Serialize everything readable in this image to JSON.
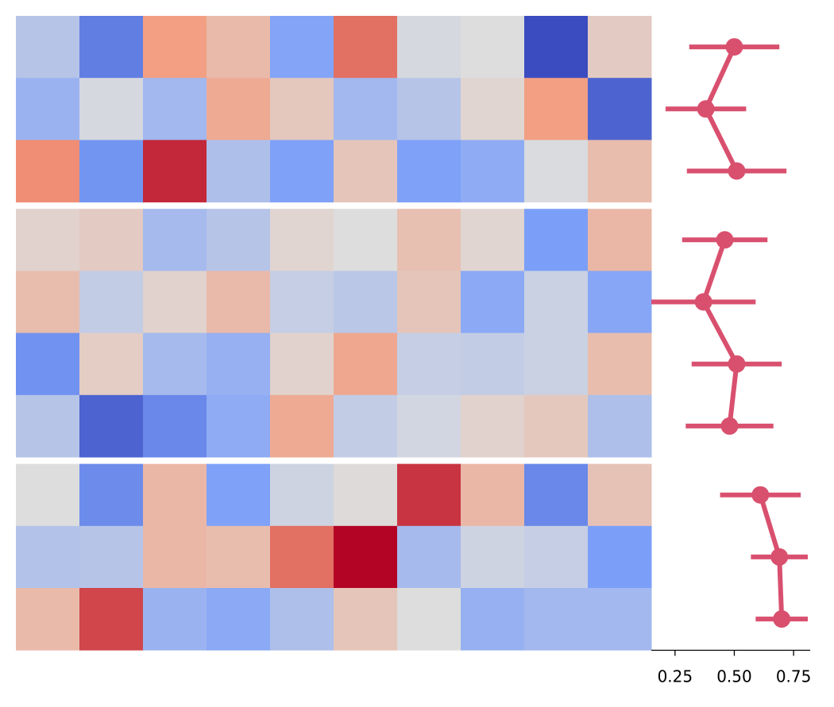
{
  "chart_data": [
    {
      "type": "heatmap",
      "colormap": "coolwarm",
      "clim": [
        0,
        1
      ],
      "blocks": [
        {
          "values": [
            [
              0.4,
              0.15,
              0.73,
              0.63,
              0.27,
              0.82,
              0.48,
              0.5,
              0.0,
              0.57
            ],
            [
              0.33,
              0.48,
              0.35,
              0.69,
              0.58,
              0.35,
              0.4,
              0.53,
              0.73,
              0.07
            ],
            [
              0.77,
              0.22,
              0.94,
              0.38,
              0.26,
              0.59,
              0.26,
              0.3,
              0.49,
              0.62
            ]
          ]
        },
        {
          "values": [
            [
              0.54,
              0.57,
              0.36,
              0.4,
              0.53,
              0.5,
              0.61,
              0.53,
              0.25,
              0.64
            ],
            [
              0.62,
              0.43,
              0.54,
              0.63,
              0.44,
              0.41,
              0.59,
              0.29,
              0.45,
              0.28
            ],
            [
              0.21,
              0.56,
              0.36,
              0.32,
              0.54,
              0.7,
              0.44,
              0.43,
              0.45,
              0.62
            ],
            [
              0.4,
              0.07,
              0.18,
              0.3,
              0.69,
              0.43,
              0.47,
              0.54,
              0.58,
              0.38
            ]
          ]
        },
        {
          "values": [
            [
              0.5,
              0.19,
              0.64,
              0.26,
              0.46,
              0.51,
              0.92,
              0.64,
              0.18,
              0.6
            ],
            [
              0.39,
              0.4,
              0.64,
              0.62,
              0.82,
              1.0,
              0.36,
              0.46,
              0.44,
              0.25
            ],
            [
              0.63,
              0.89,
              0.33,
              0.29,
              0.38,
              0.59,
              0.5,
              0.32,
              0.35,
              0.35
            ]
          ]
        }
      ]
    },
    {
      "type": "pointplot",
      "color": "#d9506f",
      "xlim": [
        0.15,
        0.82
      ],
      "xticks": [
        {
          "value": 0.25,
          "label": "0.25"
        },
        {
          "value": 0.5,
          "label": "0.50"
        },
        {
          "value": 0.75,
          "label": "0.75"
        }
      ],
      "series": [
        {
          "values": [
            0.5,
            0.38,
            0.51
          ],
          "errors": [
            0.19,
            0.17,
            0.21
          ]
        },
        {
          "values": [
            0.46,
            0.37,
            0.51,
            0.48
          ],
          "errors": [
            0.18,
            0.22,
            0.19,
            0.185
          ]
        },
        {
          "values": [
            0.61,
            0.69,
            0.7
          ],
          "errors": [
            0.17,
            0.12,
            0.11
          ]
        }
      ]
    }
  ]
}
